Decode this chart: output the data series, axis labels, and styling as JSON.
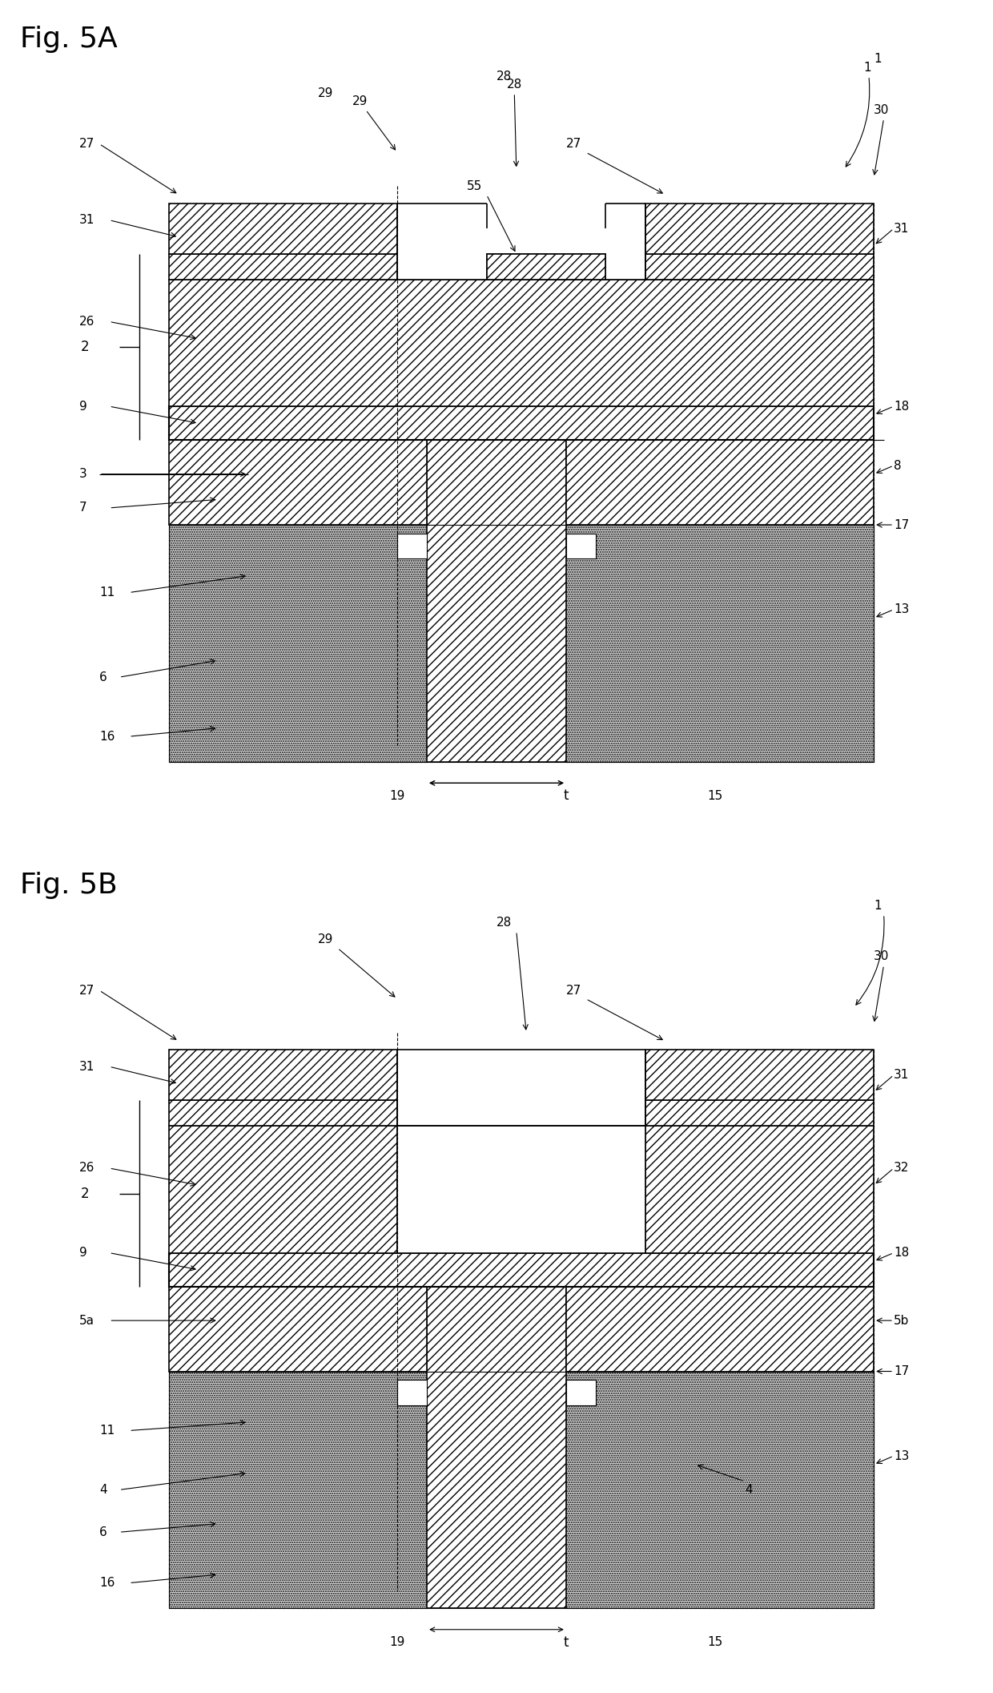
{
  "fig_title_A": "Fig. 5A",
  "fig_title_B": "Fig. 5B",
  "bg_color": "#ffffff",
  "hatch_diag": "///",
  "hatch_dense": "///",
  "dot_color": "#d8d8d8",
  "label_fs": 11,
  "title_fs": 26
}
